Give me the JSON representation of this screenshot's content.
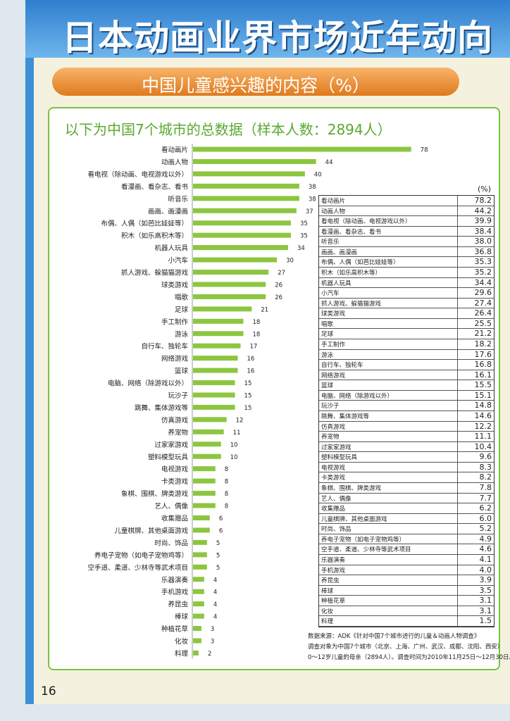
{
  "header": {
    "title": "日本动画业界市场近年动向"
  },
  "banner": {
    "title": "中国儿童感兴趣的内容（%）"
  },
  "panel": {
    "title": "以下为中国7个城市的总数据（样本人数：2894人）"
  },
  "table": {
    "unit": "(%)"
  },
  "notes": [
    "数据来源：ADK《针对中国7个城市进行的儿童＆动画人物调查》",
    "调查对象为中国7个城市（北京、上海、广州、武汉、成都、沈阳、西安）",
    "0～12岁儿童的母亲（2894人）。调查时间为2010年11月25日～12月30日。"
  ],
  "page_number": "16",
  "colors": {
    "bar": "#8cc63f",
    "accent": "#5aa830",
    "header": "#2f7fcf",
    "banner": "#e8882a"
  },
  "chart_data": {
    "type": "bar",
    "orientation": "horizontal",
    "title": "以下为中国7个城市的总数据（样本人数：2894人）",
    "categories": [
      "看动画片",
      "动画人物",
      "看电视（除动画、电视游戏以外）",
      "看漫画、看杂志、看书",
      "听音乐",
      "画画、画漫画",
      "布偶、人偶（如芭比娃娃等）",
      "积木（如乐高积木等）",
      "机器人玩具",
      "小汽车",
      "抓人游戏、躲猫猫游戏",
      "球类游戏",
      "唱歌",
      "足球",
      "手工制作",
      "游泳",
      "自行车、独轮车",
      "网络游戏",
      "篮球",
      "电脑、网络（除游戏以外）",
      "玩沙子",
      "跳舞、集体游戏等",
      "仿真游戏",
      "养宠物",
      "过家家游戏",
      "塑料模型玩具",
      "电视游戏",
      "卡类游戏",
      "象棋、围棋、牌类游戏",
      "艺人、偶像",
      "收集赠品",
      "儿童棋牌、其他桌面游戏",
      "时尚、饰品",
      "养电子宠物（如电子宠物鸡等）",
      "空手道、柔道、少林寺等武术项目",
      "乐器演奏",
      "手机游戏",
      "养昆虫",
      "棒球",
      "种植花草",
      "化妆",
      "料理"
    ],
    "values": [
      78,
      44,
      40,
      38,
      38,
      37,
      35,
      35,
      34,
      30,
      27,
      26,
      26,
      21,
      18,
      18,
      17,
      16,
      16,
      15,
      15,
      15,
      12,
      11,
      10,
      10,
      8,
      8,
      8,
      8,
      6,
      6,
      5,
      5,
      5,
      4,
      4,
      4,
      4,
      3,
      3,
      2
    ],
    "table_values": [
      "78.2",
      "44.2",
      "39.9",
      "38.4",
      "38.0",
      "36.8",
      "35.3",
      "35.2",
      "34.4",
      "29.6",
      "27.4",
      "26.4",
      "25.5",
      "21.2",
      "18.2",
      "17.6",
      "16.8",
      "16.1",
      "15.5",
      "15.1",
      "14.8",
      "14.6",
      "12.2",
      "11.1",
      "10.4",
      "9.6",
      "8.3",
      "8.2",
      "7.8",
      "7.7",
      "6.2",
      "6.0",
      "5.2",
      "4.9",
      "4.6",
      "4.1",
      "4.0",
      "3.9",
      "3.5",
      "3.1",
      "3.1",
      "1.5"
    ],
    "xlabel": "",
    "ylabel": ""
  }
}
